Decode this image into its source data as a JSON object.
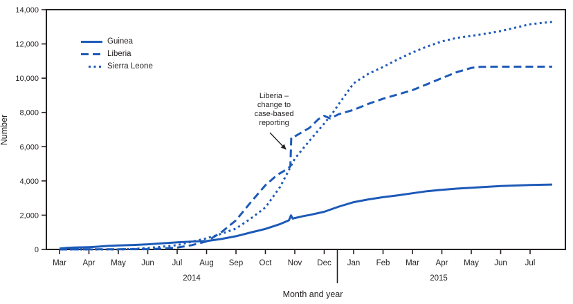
{
  "figure": {
    "y_axis_title": "Number",
    "x_axis_title": "Month and year",
    "year_labels": [
      "2014",
      "2015"
    ]
  },
  "colors": {
    "line_blue": "#1d5ab8",
    "axis_ink": "#231f20",
    "background": "#ffffff"
  },
  "legend": {
    "items": [
      {
        "label": "Guinea",
        "style": "solid"
      },
      {
        "label": "Liberia",
        "style": "dashed"
      },
      {
        "label": "Sierra Leone",
        "style": "dotted"
      }
    ]
  },
  "annotation": {
    "text": "Liberia –\nchange to\ncase-based\nreporting"
  },
  "chart_data": {
    "type": "line",
    "title": "",
    "xlabel": "Month and year",
    "ylabel": "Number",
    "ylim": [
      0,
      14000
    ],
    "grid": false,
    "legend_position": "upper-left-inside",
    "y_tick_values": [
      0,
      2000,
      4000,
      6000,
      8000,
      10000,
      12000,
      14000
    ],
    "y_tick_labels": [
      "0",
      "2,000",
      "4,000",
      "6,000",
      "8,000",
      "10,000",
      "12,000",
      "14,000"
    ],
    "x_tick_labels": [
      "Mar",
      "Apr",
      "May",
      "Jun",
      "Jul",
      "Aug",
      "Sep",
      "Oct",
      "Nov",
      "Dec",
      "Jan",
      "Feb",
      "Mar",
      "Apr",
      "May",
      "Jun",
      "Jul"
    ],
    "x_year_groups": [
      {
        "label": "2014",
        "months": "Mar–Dec"
      },
      {
        "label": "2015",
        "months": "Jan–Jul"
      }
    ],
    "x_unit": "months since Mar 2014 tick",
    "annotation": {
      "text": "Liberia – change to case-based reporting",
      "points_to": "abrupt jump in Liberia cumulative count, early Nov 2014 (~4,850 to ~6,550)"
    },
    "series": [
      {
        "name": "Guinea",
        "line_style": "solid",
        "x": [
          0,
          0.25,
          0.5,
          1,
          1.3,
          1.7,
          2,
          2.5,
          3,
          3.5,
          4,
          4.5,
          5,
          5.5,
          6,
          6.5,
          7,
          7.5,
          7.8,
          7.87,
          7.93,
          8,
          8.3,
          8.5,
          9,
          9.5,
          10,
          10.5,
          11,
          11.5,
          12,
          12.5,
          13,
          13.5,
          14,
          14.5,
          15,
          15.5,
          16,
          16.75
        ],
        "values": [
          50,
          90,
          110,
          130,
          160,
          210,
          230,
          260,
          300,
          360,
          410,
          460,
          490,
          610,
          770,
          990,
          1200,
          1480,
          1700,
          1990,
          1800,
          1830,
          1950,
          2010,
          2200,
          2500,
          2760,
          2920,
          3050,
          3160,
          3280,
          3400,
          3480,
          3550,
          3600,
          3650,
          3700,
          3730,
          3760,
          3790
        ]
      },
      {
        "name": "Liberia",
        "line_style": "dashed",
        "x": [
          0,
          1,
          2,
          3,
          3.5,
          4,
          4.5,
          5,
          5.5,
          6,
          6.5,
          7,
          7.4,
          7.7,
          7.85,
          7.88,
          8,
          8.5,
          8.8,
          9,
          9.2,
          9.5,
          10,
          10.5,
          11,
          11.5,
          12,
          12.5,
          13,
          13.5,
          14,
          14.3,
          15,
          16,
          16.75
        ],
        "values": [
          0,
          10,
          13,
          15,
          50,
          110,
          250,
          470,
          1000,
          1700,
          2750,
          3750,
          4350,
          4650,
          4850,
          6550,
          6600,
          7100,
          7600,
          7800,
          7650,
          7900,
          8150,
          8500,
          8800,
          9050,
          9300,
          9650,
          10000,
          10350,
          10600,
          10660,
          10670,
          10670,
          10670
        ]
      },
      {
        "name": "Sierra Leone",
        "line_style": "dotted",
        "x": [
          0,
          1,
          2,
          2.5,
          3,
          3.5,
          4,
          4.5,
          5,
          5.5,
          6,
          6.5,
          7,
          7.5,
          8,
          8.5,
          9,
          9.3,
          9.5,
          10,
          10.5,
          11,
          11.5,
          12,
          12.5,
          13,
          13.5,
          14,
          14.5,
          15,
          15.5,
          16,
          16.75
        ],
        "values": [
          0,
          0,
          0,
          30,
          80,
          160,
          250,
          450,
          650,
          910,
          1220,
          1800,
          2450,
          3650,
          5300,
          6350,
          7350,
          8000,
          8500,
          9700,
          10250,
          10650,
          11100,
          11500,
          11850,
          12150,
          12350,
          12470,
          12600,
          12750,
          12950,
          13150,
          13290
        ]
      }
    ]
  }
}
